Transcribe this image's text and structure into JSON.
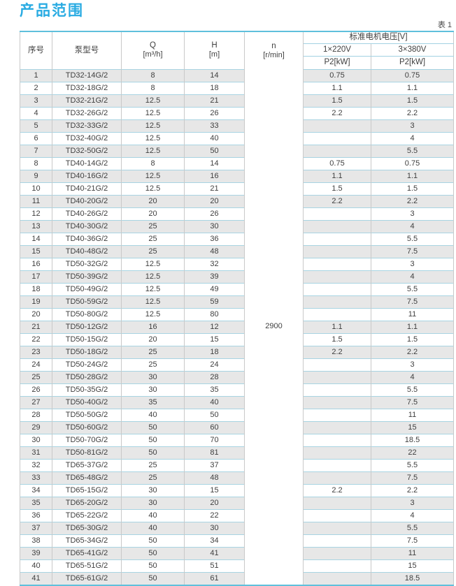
{
  "page": {
    "title": "产品范围",
    "table_caption": "表 1"
  },
  "table": {
    "headers": {
      "index": "序号",
      "model": "泵型号",
      "q_symbol": "Q",
      "q_unit": "[m³/h]",
      "h_symbol": "H",
      "h_unit": "[m]",
      "n_symbol": "n",
      "n_unit": "[r/min]",
      "voltage_group": "标准电机电压[V]",
      "v220": "1×220V",
      "v380": "3×380V",
      "p2_220": "P2[kW]",
      "p2_380": "P2[kW]"
    },
    "n_value": "2900",
    "rows": [
      {
        "no": "1",
        "model": "TD32-14G/2",
        "q": "8",
        "h": "14",
        "p220": "0.75",
        "p380": "0.75"
      },
      {
        "no": "2",
        "model": "TD32-18G/2",
        "q": "8",
        "h": "18",
        "p220": "1.1",
        "p380": "1.1"
      },
      {
        "no": "3",
        "model": "TD32-21G/2",
        "q": "12.5",
        "h": "21",
        "p220": "1.5",
        "p380": "1.5"
      },
      {
        "no": "4",
        "model": "TD32-26G/2",
        "q": "12.5",
        "h": "26",
        "p220": "2.2",
        "p380": "2.2"
      },
      {
        "no": "5",
        "model": "TD32-33G/2",
        "q": "12.5",
        "h": "33",
        "p220": "",
        "p380": "3"
      },
      {
        "no": "6",
        "model": "TD32-40G/2",
        "q": "12.5",
        "h": "40",
        "p220": "",
        "p380": "4"
      },
      {
        "no": "7",
        "model": "TD32-50G/2",
        "q": "12.5",
        "h": "50",
        "p220": "",
        "p380": "5.5"
      },
      {
        "no": "8",
        "model": "TD40-14G/2",
        "q": "8",
        "h": "14",
        "p220": "0.75",
        "p380": "0.75"
      },
      {
        "no": "9",
        "model": "TD40-16G/2",
        "q": "12.5",
        "h": "16",
        "p220": "1.1",
        "p380": "1.1"
      },
      {
        "no": "10",
        "model": "TD40-21G/2",
        "q": "12.5",
        "h": "21",
        "p220": "1.5",
        "p380": "1.5"
      },
      {
        "no": "11",
        "model": "TD40-20G/2",
        "q": "20",
        "h": "20",
        "p220": "2.2",
        "p380": "2.2"
      },
      {
        "no": "12",
        "model": "TD40-26G/2",
        "q": "20",
        "h": "26",
        "p220": "",
        "p380": "3"
      },
      {
        "no": "13",
        "model": "TD40-30G/2",
        "q": "25",
        "h": "30",
        "p220": "",
        "p380": "4"
      },
      {
        "no": "14",
        "model": "TD40-36G/2",
        "q": "25",
        "h": "36",
        "p220": "",
        "p380": "5.5"
      },
      {
        "no": "15",
        "model": "TD40-48G/2",
        "q": "25",
        "h": "48",
        "p220": "",
        "p380": "7.5"
      },
      {
        "no": "16",
        "model": "TD50-32G/2",
        "q": "12.5",
        "h": "32",
        "p220": "",
        "p380": "3"
      },
      {
        "no": "17",
        "model": "TD50-39G/2",
        "q": "12.5",
        "h": "39",
        "p220": "",
        "p380": "4"
      },
      {
        "no": "18",
        "model": "TD50-49G/2",
        "q": "12.5",
        "h": "49",
        "p220": "",
        "p380": "5.5"
      },
      {
        "no": "19",
        "model": "TD50-59G/2",
        "q": "12.5",
        "h": "59",
        "p220": "",
        "p380": "7.5"
      },
      {
        "no": "20",
        "model": "TD50-80G/2",
        "q": "12.5",
        "h": "80",
        "p220": "",
        "p380": "11"
      },
      {
        "no": "21",
        "model": "TD50-12G/2",
        "q": "16",
        "h": "12",
        "p220": "1.1",
        "p380": "1.1"
      },
      {
        "no": "22",
        "model": "TD50-15G/2",
        "q": "20",
        "h": "15",
        "p220": "1.5",
        "p380": "1.5"
      },
      {
        "no": "23",
        "model": "TD50-18G/2",
        "q": "25",
        "h": "18",
        "p220": "2.2",
        "p380": "2.2"
      },
      {
        "no": "24",
        "model": "TD50-24G/2",
        "q": "25",
        "h": "24",
        "p220": "",
        "p380": "3"
      },
      {
        "no": "25",
        "model": "TD50-28G/2",
        "q": "30",
        "h": "28",
        "p220": "",
        "p380": "4"
      },
      {
        "no": "26",
        "model": "TD50-35G/2",
        "q": "30",
        "h": "35",
        "p220": "",
        "p380": "5.5"
      },
      {
        "no": "27",
        "model": "TD50-40G/2",
        "q": "35",
        "h": "40",
        "p220": "",
        "p380": "7.5"
      },
      {
        "no": "28",
        "model": "TD50-50G/2",
        "q": "40",
        "h": "50",
        "p220": "",
        "p380": "11"
      },
      {
        "no": "29",
        "model": "TD50-60G/2",
        "q": "50",
        "h": "60",
        "p220": "",
        "p380": "15"
      },
      {
        "no": "30",
        "model": "TD50-70G/2",
        "q": "50",
        "h": "70",
        "p220": "",
        "p380": "18.5"
      },
      {
        "no": "31",
        "model": "TD50-81G/2",
        "q": "50",
        "h": "81",
        "p220": "",
        "p380": "22"
      },
      {
        "no": "32",
        "model": "TD65-37G/2",
        "q": "25",
        "h": "37",
        "p220": "",
        "p380": "5.5"
      },
      {
        "no": "33",
        "model": "TD65-48G/2",
        "q": "25",
        "h": "48",
        "p220": "",
        "p380": "7.5"
      },
      {
        "no": "34",
        "model": "TD65-15G/2",
        "q": "30",
        "h": "15",
        "p220": "2.2",
        "p380": "2.2"
      },
      {
        "no": "35",
        "model": "TD65-20G/2",
        "q": "30",
        "h": "20",
        "p220": "",
        "p380": "3"
      },
      {
        "no": "36",
        "model": "TD65-22G/2",
        "q": "40",
        "h": "22",
        "p220": "",
        "p380": "4"
      },
      {
        "no": "37",
        "model": "TD65-30G/2",
        "q": "40",
        "h": "30",
        "p220": "",
        "p380": "5.5"
      },
      {
        "no": "38",
        "model": "TD65-34G/2",
        "q": "50",
        "h": "34",
        "p220": "",
        "p380": "7.5"
      },
      {
        "no": "39",
        "model": "TD65-41G/2",
        "q": "50",
        "h": "41",
        "p220": "",
        "p380": "11"
      },
      {
        "no": "40",
        "model": "TD65-51G/2",
        "q": "50",
        "h": "51",
        "p220": "",
        "p380": "15"
      },
      {
        "no": "41",
        "model": "TD65-61G/2",
        "q": "50",
        "h": "61",
        "p220": "",
        "p380": "18.5"
      }
    ]
  },
  "colors": {
    "accent_title": "#29abe2",
    "table_border_strong": "#5fc0dc",
    "row_line": "#a8d4e2",
    "column_line": "#c9c9c9",
    "row_shade": "#e7e7e7",
    "text": "#3f3f3f"
  }
}
